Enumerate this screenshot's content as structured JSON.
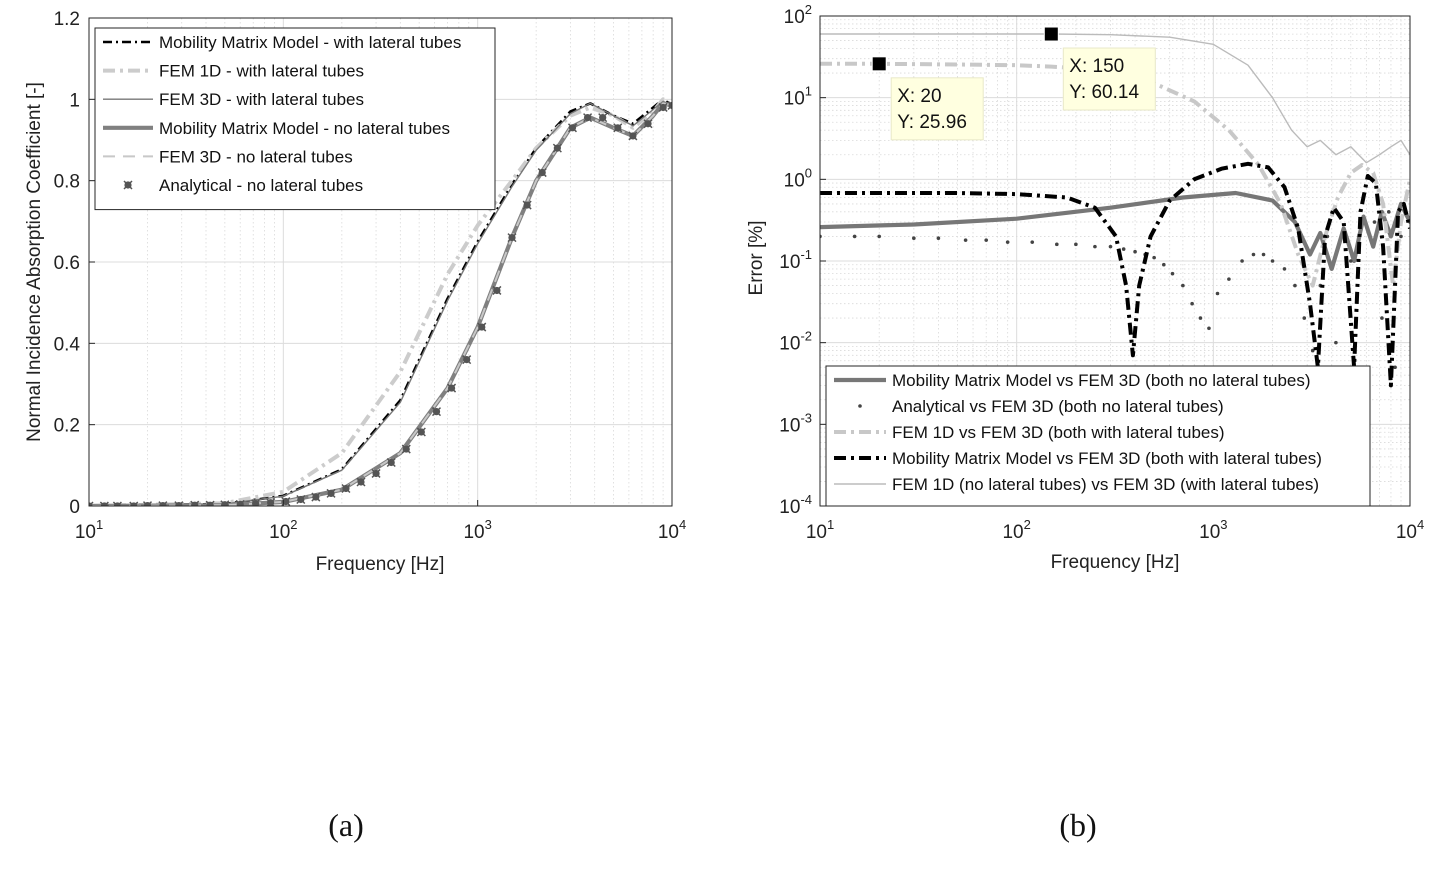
{
  "chart_data": [
    {
      "type": "line",
      "panel": "a",
      "caption": "(a)",
      "xlabel": "Frequency [Hz]",
      "ylabel": "Normal Incidence Absorption Coefficient [-]",
      "xscale": "log",
      "xlim": [
        10,
        10000
      ],
      "ylim": [
        0,
        1.2
      ],
      "grid": true,
      "legend_position": "top-left",
      "x_ticks": [
        {
          "base": "10",
          "exp": "1"
        },
        {
          "base": "10",
          "exp": "2"
        },
        {
          "base": "10",
          "exp": "3"
        },
        {
          "base": "10",
          "exp": "4"
        }
      ],
      "y_ticks": [
        "0",
        "0.2",
        "0.4",
        "0.6",
        "0.8",
        "1",
        "1.2"
      ],
      "series": [
        {
          "name": "Mobility Matrix Model - with lateral tubes",
          "style": "dashdot",
          "color": "#000000",
          "x": [
            10,
            50,
            100,
            200,
            400,
            700,
            1000,
            1500,
            2000,
            3000,
            3800,
            5000,
            6300,
            8000,
            9000,
            10000
          ],
          "y": [
            0.0,
            0.005,
            0.025,
            0.09,
            0.26,
            0.51,
            0.65,
            0.79,
            0.88,
            0.97,
            0.99,
            0.96,
            0.94,
            0.98,
            1.0,
            0.985
          ]
        },
        {
          "name": "FEM 1D - with lateral tubes",
          "style": "dashdot-thick",
          "color": "#cccccc",
          "x": [
            10,
            50,
            100,
            200,
            400,
            700,
            1000,
            1500,
            2000,
            3000,
            3800,
            5000,
            6300,
            8000,
            9000,
            10000
          ],
          "y": [
            0.0,
            0.007,
            0.035,
            0.13,
            0.33,
            0.57,
            0.69,
            0.8,
            0.88,
            0.96,
            0.98,
            0.96,
            0.93,
            0.97,
            1.0,
            0.985
          ]
        },
        {
          "name": "FEM 3D - with lateral tubes",
          "style": "solid-thin",
          "color": "#777777",
          "x": [
            10,
            50,
            100,
            200,
            400,
            700,
            1000,
            1500,
            2000,
            3000,
            3800,
            5000,
            6300,
            8000,
            9000,
            10000
          ],
          "y": [
            0.0,
            0.005,
            0.024,
            0.088,
            0.255,
            0.505,
            0.645,
            0.785,
            0.875,
            0.965,
            0.99,
            0.96,
            0.935,
            0.975,
            0.995,
            0.985
          ]
        },
        {
          "name": "Mobility Matrix Model - no lateral tubes",
          "style": "solid-thick",
          "color": "#808080",
          "x": [
            10,
            50,
            100,
            200,
            400,
            700,
            1000,
            1500,
            2000,
            3000,
            3800,
            5000,
            6300,
            8000,
            9000,
            10000
          ],
          "y": [
            0.0,
            0.002,
            0.01,
            0.04,
            0.13,
            0.29,
            0.44,
            0.66,
            0.8,
            0.93,
            0.955,
            0.93,
            0.91,
            0.96,
            0.99,
            0.985
          ]
        },
        {
          "name": "FEM 3D - no lateral tubes",
          "style": "dashed",
          "color": "#c8c8c8",
          "x": [
            10,
            50,
            100,
            200,
            400,
            700,
            1000,
            1500,
            2000,
            3000,
            3800,
            5000,
            6300,
            8000,
            9000,
            10000
          ],
          "y": [
            0.0,
            0.002,
            0.01,
            0.04,
            0.13,
            0.29,
            0.44,
            0.66,
            0.8,
            0.93,
            0.955,
            0.93,
            0.91,
            0.96,
            0.99,
            0.985
          ]
        },
        {
          "name": "Analytical - no lateral tubes",
          "style": "markers",
          "color": "#555555",
          "x": [
            10,
            12,
            14,
            17,
            20,
            24,
            29,
            35,
            42,
            50,
            60,
            72,
            86,
            103,
            123,
            147,
            176,
            210,
            251,
            300,
            359,
            429,
            513,
            614,
            734,
            878,
            1050,
            1256,
            1502,
            1797,
            2149,
            2571,
            3075,
            3678,
            4399,
            5261,
            6293,
            7527,
            9003,
            10000
          ],
          "y": [
            0.0,
            0.0,
            0.0,
            0.0,
            0.001,
            0.001,
            0.001,
            0.002,
            0.002,
            0.003,
            0.004,
            0.006,
            0.008,
            0.011,
            0.016,
            0.022,
            0.031,
            0.043,
            0.059,
            0.08,
            0.107,
            0.14,
            0.182,
            0.232,
            0.29,
            0.36,
            0.44,
            0.53,
            0.66,
            0.74,
            0.82,
            0.88,
            0.93,
            0.955,
            0.955,
            0.93,
            0.91,
            0.94,
            0.98,
            0.985
          ]
        }
      ]
    },
    {
      "type": "line",
      "panel": "b",
      "caption": "(b)",
      "xlabel": "Frequency [Hz]",
      "ylabel": "Error [%]",
      "xscale": "log",
      "yscale": "log",
      "xlim": [
        10,
        10000
      ],
      "ylim": [
        0.0001,
        100
      ],
      "grid": true,
      "legend_position": "bottom-left",
      "x_ticks": [
        {
          "base": "10",
          "exp": "1"
        },
        {
          "base": "10",
          "exp": "2"
        },
        {
          "base": "10",
          "exp": "3"
        },
        {
          "base": "10",
          "exp": "4"
        }
      ],
      "y_ticks": [
        {
          "base": "10",
          "exp": "-4"
        },
        {
          "base": "10",
          "exp": "-3"
        },
        {
          "base": "10",
          "exp": "-2"
        },
        {
          "base": "10",
          "exp": "-1"
        },
        {
          "base": "10",
          "exp": "0"
        },
        {
          "base": "10",
          "exp": "1"
        },
        {
          "base": "10",
          "exp": "2"
        }
      ],
      "series": [
        {
          "name": "Mobility Matrix Model vs FEM 3D (both no lateral tubes)",
          "style": "solid-thick",
          "color": "#777777",
          "x": [
            10,
            30,
            100,
            300,
            700,
            1300,
            2000,
            2600,
            3100,
            3500,
            4000,
            4600,
            5200,
            5800,
            6500,
            7200,
            8000,
            9000,
            10000
          ],
          "y": [
            0.26,
            0.28,
            0.33,
            0.45,
            0.6,
            0.68,
            0.55,
            0.3,
            0.12,
            0.22,
            0.08,
            0.25,
            0.1,
            0.35,
            0.15,
            0.4,
            0.2,
            0.5,
            0.3
          ]
        },
        {
          "name": "Analytical vs FEM 3D (both no lateral tubes)",
          "style": "dots",
          "color": "#444444",
          "x": [
            10,
            15,
            20,
            30,
            40,
            55,
            70,
            90,
            120,
            160,
            200,
            250,
            300,
            350,
            400,
            450,
            500,
            560,
            620,
            700,
            780,
            860,
            950,
            1050,
            1200,
            1400,
            1600,
            1800,
            2000,
            2300,
            2600,
            2900,
            3200,
            3500,
            3800,
            4200,
            4600,
            5000,
            5500,
            6000,
            6600,
            7200,
            7800,
            8400,
            9000,
            10000
          ],
          "y": [
            0.2,
            0.2,
            0.2,
            0.19,
            0.19,
            0.18,
            0.18,
            0.17,
            0.17,
            0.16,
            0.16,
            0.15,
            0.15,
            0.14,
            0.13,
            0.12,
            0.11,
            0.09,
            0.07,
            0.05,
            0.03,
            0.02,
            0.015,
            0.04,
            0.06,
            0.1,
            0.12,
            0.12,
            0.1,
            0.08,
            0.05,
            0.02,
            0.008,
            0.05,
            0.2,
            0.01,
            0.003,
            0.1,
            0.15,
            0.004,
            0.3,
            0.02,
            0.4,
            0.005,
            0.2,
            0.3
          ]
        },
        {
          "name": "FEM 1D vs FEM 3D (both with lateral tubes)",
          "style": "dashdot-thick",
          "color": "#c8c8c8",
          "x": [
            10,
            20,
            50,
            100,
            150,
            200,
            300,
            500,
            800,
            1200,
            1700,
            2200,
            2700,
            3200,
            3700,
            4300,
            5000,
            5700,
            6500,
            7300,
            8200,
            9000,
            10000
          ],
          "y": [
            25.96,
            25.96,
            25.5,
            25.0,
            24.0,
            23.0,
            20.0,
            15.0,
            9.0,
            4.0,
            1.5,
            0.5,
            0.12,
            0.05,
            0.2,
            0.6,
            1.2,
            1.5,
            1.2,
            0.5,
            0.05,
            0.3,
            1.0
          ]
        },
        {
          "name": "Mobility Matrix Model vs FEM 3D (both with lateral tubes)",
          "style": "dashdot-thick",
          "color": "#000000",
          "x": [
            10,
            50,
            100,
            180,
            250,
            320,
            360,
            390,
            420,
            480,
            600,
            800,
            1100,
            1500,
            1900,
            2300,
            2700,
            3100,
            3400,
            3700,
            4100,
            4600,
            5200,
            5600,
            6100,
            6700,
            7300,
            8000,
            8700,
            9300,
            10000
          ],
          "y": [
            0.68,
            0.68,
            0.66,
            0.6,
            0.45,
            0.2,
            0.05,
            0.007,
            0.05,
            0.2,
            0.55,
            1.0,
            1.35,
            1.55,
            1.4,
            0.8,
            0.25,
            0.03,
            0.005,
            0.2,
            0.45,
            0.3,
            0.005,
            0.4,
            1.1,
            0.9,
            0.15,
            0.003,
            0.4,
            0.5,
            0.25
          ]
        },
        {
          "name": "FEM 1D (no lateral tubes) vs FEM 3D (with lateral tubes)",
          "style": "solid-thin",
          "color": "#bbbbbb",
          "x": [
            10,
            30,
            80,
            150,
            300,
            600,
            1000,
            1500,
            2000,
            2500,
            3000,
            3500,
            4200,
            5000,
            6000,
            7000,
            8000,
            9000,
            10000
          ],
          "y": [
            60.14,
            60.14,
            60.14,
            60.14,
            59.0,
            55.0,
            45.0,
            25.0,
            10.0,
            4.0,
            2.5,
            3.0,
            2.0,
            2.5,
            1.6,
            2.0,
            2.5,
            3.0,
            2.0
          ]
        }
      ],
      "annotations": [
        {
          "x": 20,
          "y": 25.96,
          "line1": "X: 20",
          "line2": "Y: 25.96"
        },
        {
          "x": 150,
          "y": 60.14,
          "line1": "X: 150",
          "line2": "Y: 60.14"
        }
      ]
    }
  ]
}
